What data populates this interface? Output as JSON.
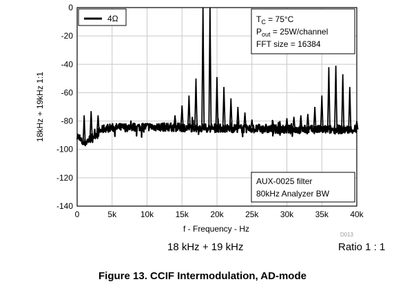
{
  "chart_data": {
    "type": "line",
    "title": "",
    "xlabel": "f - Frequency - Hz",
    "ylabel": "18kHz + 19kHz 1:1",
    "xlim": [
      0,
      40000
    ],
    "ylim": [
      -140,
      0
    ],
    "x_ticks": [
      "0",
      "5k",
      "10k",
      "15k",
      "20k",
      "25k",
      "30k",
      "35k",
      "40k"
    ],
    "y_ticks": [
      "0",
      "-20",
      "-40",
      "-60",
      "-80",
      "-100",
      "-120",
      "-140"
    ],
    "grid": true,
    "legend": {
      "placement": "top-left",
      "entries": [
        "4Ω"
      ]
    },
    "series": [
      {
        "name": "4Ω",
        "noise_floor": [
          [
            0,
            -90
          ],
          [
            500,
            -94
          ],
          [
            1000,
            -96
          ],
          [
            2000,
            -92
          ],
          [
            3000,
            -88
          ],
          [
            4000,
            -85
          ],
          [
            10000,
            -84
          ],
          [
            20000,
            -85
          ],
          [
            30000,
            -86
          ],
          [
            40000,
            -86
          ]
        ],
        "peaks": [
          [
            1000,
            -76
          ],
          [
            2000,
            -73
          ],
          [
            3000,
            -76
          ],
          [
            13000,
            -82
          ],
          [
            14000,
            -76
          ],
          [
            15000,
            -69
          ],
          [
            16000,
            -62
          ],
          [
            17000,
            -50
          ],
          [
            18000,
            0
          ],
          [
            19000,
            0
          ],
          [
            20000,
            -49
          ],
          [
            21000,
            -56
          ],
          [
            22000,
            -64
          ],
          [
            23000,
            -70
          ],
          [
            24000,
            -74
          ],
          [
            25000,
            -79
          ],
          [
            26000,
            -82
          ],
          [
            27000,
            -82
          ],
          [
            28000,
            -80
          ],
          [
            29000,
            -80
          ],
          [
            30000,
            -78
          ],
          [
            31000,
            -77
          ],
          [
            32000,
            -76
          ],
          [
            33000,
            -75
          ],
          [
            34000,
            -70
          ],
          [
            35000,
            -62
          ],
          [
            36000,
            -42
          ],
          [
            37000,
            -41
          ],
          [
            38000,
            -47
          ],
          [
            39000,
            -56
          ],
          [
            40000,
            -80
          ]
        ]
      }
    ],
    "annotations": {
      "conditions": [
        {
          "main": "T",
          "sub": "C",
          "rest": " = 75°C"
        },
        {
          "main": "P",
          "sub": "out",
          "rest": " = 25W/channel"
        },
        {
          "main": "FFT size = 16384",
          "sub": "",
          "rest": ""
        }
      ],
      "filter": [
        "AUX-0025 filter",
        "80kHz Analyzer BW"
      ],
      "figure_code": "D013"
    },
    "colors": {
      "trace": "#000000",
      "grid": "#c8c8c8",
      "frame": "#000000"
    }
  },
  "below": {
    "signal": "18 kHz + 19 kHz",
    "ratio": "Ratio 1 : 1"
  },
  "caption": "Figure 13. CCIF Intermodulation, AD-mode"
}
